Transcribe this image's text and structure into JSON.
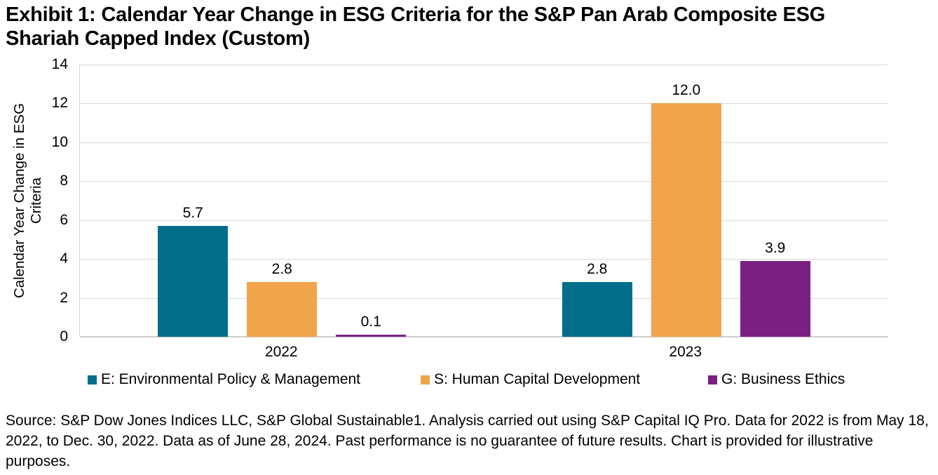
{
  "title": "Exhibit 1: Calendar Year Change in ESG Criteria for the S&P Pan Arab Composite ESG Shariah Capped Index (Custom)",
  "source": "Source: S&P Dow Jones Indices LLC, S&P Global Sustainable1. Analysis carried out using S&P Capital IQ Pro. Data for 2022 is from May 18, 2022, to Dec. 30, 2022. Data as of June 28, 2024. Past performance is no guarantee of future results. Chart is provided for illustrative purposes.",
  "chart_data": {
    "type": "bar",
    "title": "Exhibit 1: Calendar Year Change in ESG Criteria for the S&P Pan Arab Composite ESG Shariah Capped Index (Custom)",
    "categories": [
      "2022",
      "2023"
    ],
    "series": [
      {
        "name": "E: Environmental Policy & Management",
        "color": "#046E8A",
        "values": [
          5.7,
          2.8
        ],
        "labels": [
          "5.7",
          "2.8"
        ]
      },
      {
        "name": "S: Human Capital Development",
        "color": "#F0A44C",
        "values": [
          2.8,
          12.0
        ],
        "labels": [
          "2.8",
          "12.0"
        ]
      },
      {
        "name": "G: Business Ethics",
        "color": "#7A2083",
        "values": [
          0.1,
          3.9
        ],
        "labels": [
          "0.1",
          "3.9"
        ]
      }
    ],
    "xlabel": "",
    "ylabel": "Calendar Year Change in ESG Criteria",
    "ylim": [
      0,
      14
    ],
    "ytick_step": 2,
    "grid": true,
    "legend_position": "bottom"
  },
  "colors": {
    "gridline": "#D9D9D9",
    "baseline": "#CFCDCE",
    "text": "#000000"
  }
}
